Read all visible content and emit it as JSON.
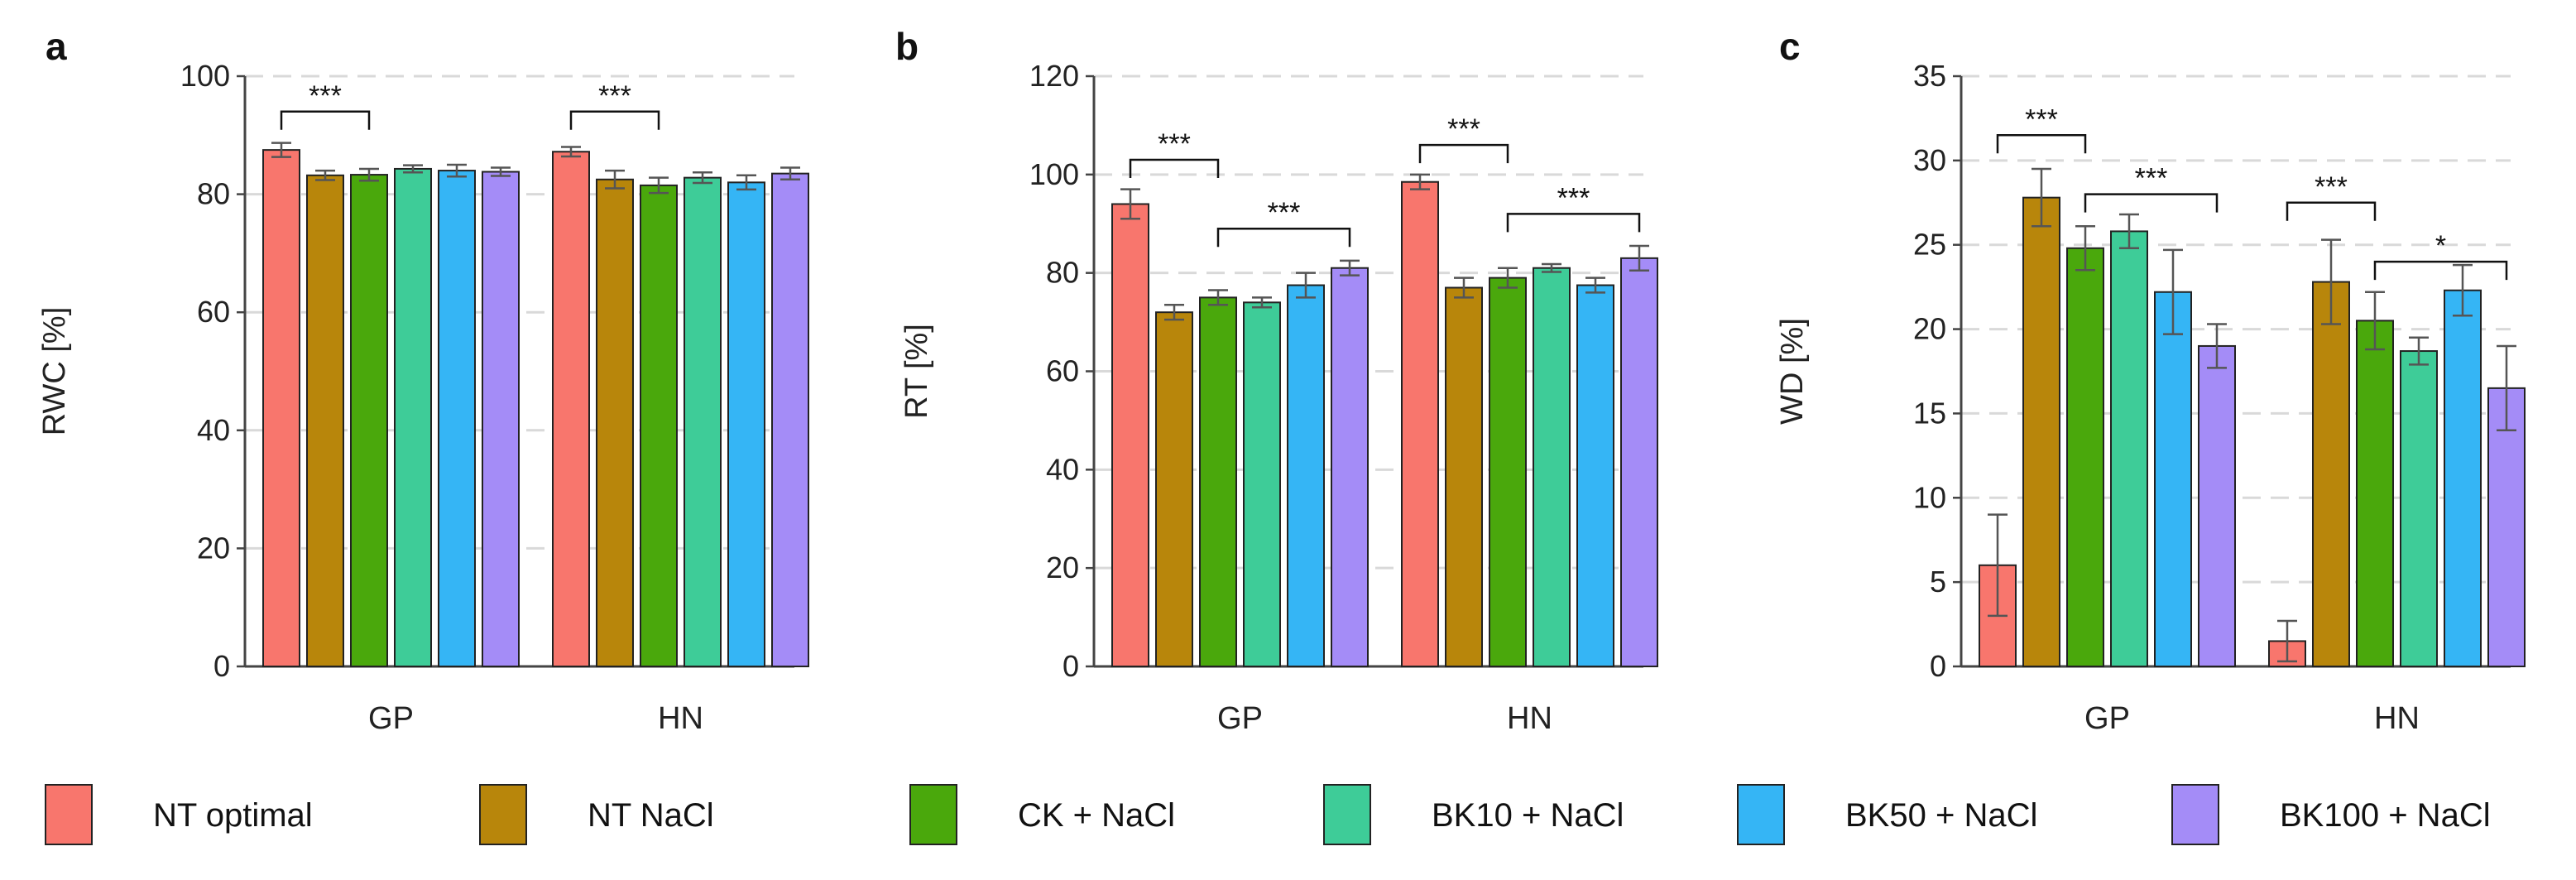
{
  "colors": {
    "NT optimal": "#f8766d",
    "NT NaCl": "#b8860b",
    "CK + NaCl": "#4aa80c",
    "BK10 + NaCl": "#3ecc98",
    "BK50 + NaCl": "#35b5f5",
    "BK100 + NaCl": "#a48cf7",
    "grid": "#d9d9d9",
    "axis": "#444444"
  },
  "legend": [
    "NT optimal",
    "NT NaCl",
    "CK + NaCl",
    "BK10 + NaCl",
    "BK50 + NaCl",
    "BK100 + NaCl"
  ],
  "chart_data": [
    {
      "type": "bar",
      "panel": "a",
      "ylabel": "RWC [%]",
      "ylim": [
        0,
        100
      ],
      "yticks": [
        0,
        20,
        40,
        60,
        80,
        100
      ],
      "categories": [
        "GP",
        "HN"
      ],
      "series": [
        {
          "name": "NT optimal",
          "values": [
            87.5,
            87.2
          ],
          "errors": [
            1.2,
            0.8
          ]
        },
        {
          "name": "NT NaCl",
          "values": [
            83.2,
            82.5
          ],
          "errors": [
            0.8,
            1.5
          ]
        },
        {
          "name": "CK + NaCl",
          "values": [
            83.3,
            81.5
          ],
          "errors": [
            1.0,
            1.3
          ]
        },
        {
          "name": "BK10 + NaCl",
          "values": [
            84.3,
            82.8
          ],
          "errors": [
            0.6,
            0.9
          ]
        },
        {
          "name": "BK50 + NaCl",
          "values": [
            84.0,
            82.0
          ],
          "errors": [
            1.0,
            1.2
          ]
        },
        {
          "name": "BK100 + NaCl",
          "values": [
            83.8,
            83.5
          ],
          "errors": [
            0.7,
            1.0
          ]
        }
      ],
      "significance": [
        {
          "group": 0,
          "from": 0,
          "to": 2,
          "label": "***",
          "y": 94
        },
        {
          "group": 1,
          "from": 0,
          "to": 2,
          "label": "***",
          "y": 94
        }
      ]
    },
    {
      "type": "bar",
      "panel": "b",
      "ylabel": "RT [%]",
      "ylim": [
        0,
        120
      ],
      "yticks": [
        0,
        20,
        40,
        60,
        80,
        100,
        120
      ],
      "categories": [
        "GP",
        "HN"
      ],
      "series": [
        {
          "name": "NT optimal",
          "values": [
            94.0,
            98.5
          ],
          "errors": [
            3.0,
            1.5
          ]
        },
        {
          "name": "NT NaCl",
          "values": [
            72.0,
            77.0
          ],
          "errors": [
            1.5,
            2.0
          ]
        },
        {
          "name": "CK + NaCl",
          "values": [
            75.0,
            79.0
          ],
          "errors": [
            1.5,
            2.0
          ]
        },
        {
          "name": "BK10 + NaCl",
          "values": [
            74.0,
            81.0
          ],
          "errors": [
            1.0,
            0.8
          ]
        },
        {
          "name": "BK50 + NaCl",
          "values": [
            77.5,
            77.5
          ],
          "errors": [
            2.5,
            1.5
          ]
        },
        {
          "name": "BK100 + NaCl",
          "values": [
            81.0,
            83.0
          ],
          "errors": [
            1.5,
            2.5
          ]
        }
      ],
      "significance": [
        {
          "group": 0,
          "from": 0,
          "to": 2,
          "label": "***",
          "y": 103
        },
        {
          "group": 0,
          "from": 2,
          "to": 5,
          "label": "***",
          "y": 89
        },
        {
          "group": 1,
          "from": 0,
          "to": 2,
          "label": "***",
          "y": 106
        },
        {
          "group": 1,
          "from": 2,
          "to": 5,
          "label": "***",
          "y": 92
        }
      ]
    },
    {
      "type": "bar",
      "panel": "c",
      "ylabel": "WD [%]",
      "ylim": [
        0,
        35
      ],
      "yticks": [
        0,
        5,
        10,
        15,
        20,
        25,
        30,
        35
      ],
      "categories": [
        "GP",
        "HN"
      ],
      "series": [
        {
          "name": "NT optimal",
          "values": [
            6.0,
            1.5
          ],
          "errors": [
            3.0,
            1.2
          ]
        },
        {
          "name": "NT NaCl",
          "values": [
            27.8,
            22.8
          ],
          "errors": [
            1.7,
            2.5
          ]
        },
        {
          "name": "CK + NaCl",
          "values": [
            24.8,
            20.5
          ],
          "errors": [
            1.3,
            1.7
          ]
        },
        {
          "name": "BK10 + NaCl",
          "values": [
            25.8,
            18.7
          ],
          "errors": [
            1.0,
            0.8
          ]
        },
        {
          "name": "BK50 + NaCl",
          "values": [
            22.2,
            22.3
          ],
          "errors": [
            2.5,
            1.5
          ]
        },
        {
          "name": "BK100 + NaCl",
          "values": [
            19.0,
            16.5
          ],
          "errors": [
            1.3,
            2.5
          ]
        }
      ],
      "significance": [
        {
          "group": 0,
          "from": 0,
          "to": 2,
          "label": "***",
          "y": 31.5
        },
        {
          "group": 0,
          "from": 2,
          "to": 5,
          "label": "***",
          "y": 28.0
        },
        {
          "group": 1,
          "from": 0,
          "to": 2,
          "label": "***",
          "y": 27.5
        },
        {
          "group": 1,
          "from": 2,
          "to": 5,
          "label": "*",
          "y": 24.0
        }
      ]
    }
  ]
}
